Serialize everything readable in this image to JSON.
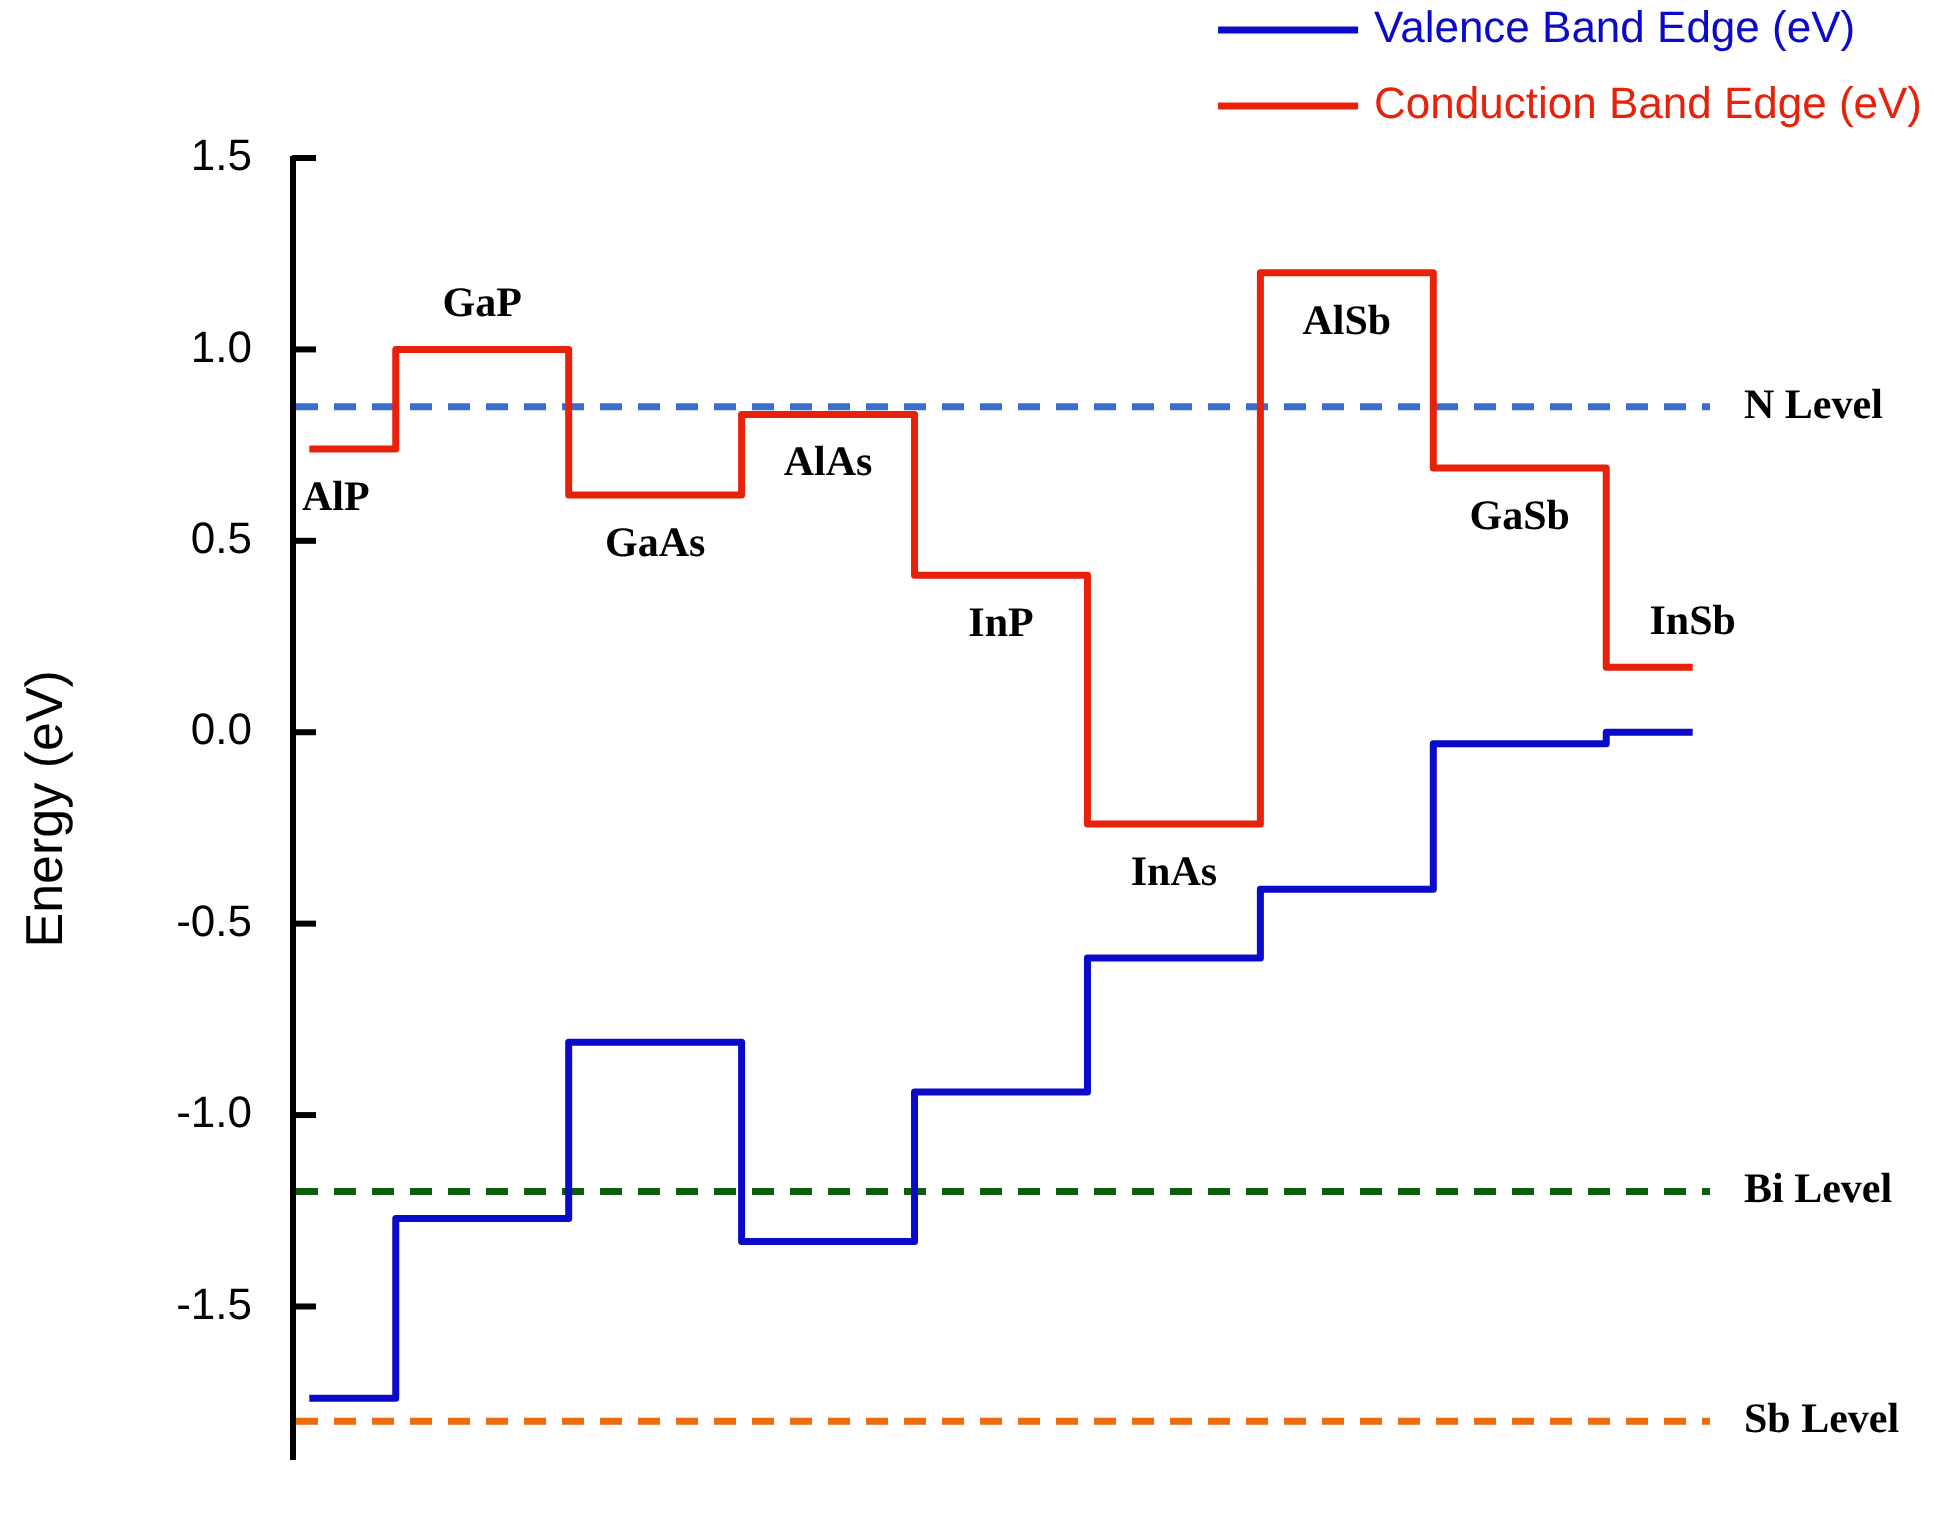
{
  "chart_data": {
    "type": "step",
    "ylabel": "Energy (eV)",
    "categories": [
      "AlP",
      "GaP",
      "GaAs",
      "AlAs",
      "InP",
      "InAs",
      "AlSb",
      "GaSb",
      "InSb"
    ],
    "series": [
      {
        "name": "Valence Band Edge (eV)",
        "color": "#0a0ac8",
        "values": [
          -1.74,
          -1.27,
          -0.81,
          -1.33,
          -0.94,
          -0.59,
          -0.41,
          -0.03,
          0.0
        ]
      },
      {
        "name": "Conduction Band Edge (eV)",
        "color": "#e8220a",
        "values": [
          0.74,
          1.0,
          0.62,
          0.83,
          0.41,
          -0.24,
          1.2,
          0.69,
          0.17
        ]
      }
    ],
    "ylim": [
      -1.9,
      1.5
    ],
    "yticks": [
      -1.5,
      {
        "value": -1,
        "label": "-1.0"
      },
      -0.5,
      {
        "value": 0,
        "label": "0.0"
      },
      0.5,
      {
        "value": 1,
        "label": "1.0"
      },
      1.5
    ],
    "ref_lines": [
      {
        "axis": "y",
        "value": 0.85,
        "label": "N Level",
        "color": "#3a6fd0",
        "line_style": "dashed"
      },
      {
        "axis": "y",
        "value": -1.2,
        "label": "Bi Level",
        "color": "#0b5f0b",
        "line_style": "dashed"
      },
      {
        "axis": "y",
        "value": -1.8,
        "label": "Sb Level",
        "color": "#ef6c0c",
        "line_style": "dashed"
      }
    ],
    "legend": "top right",
    "tick_labels": "y"
  }
}
